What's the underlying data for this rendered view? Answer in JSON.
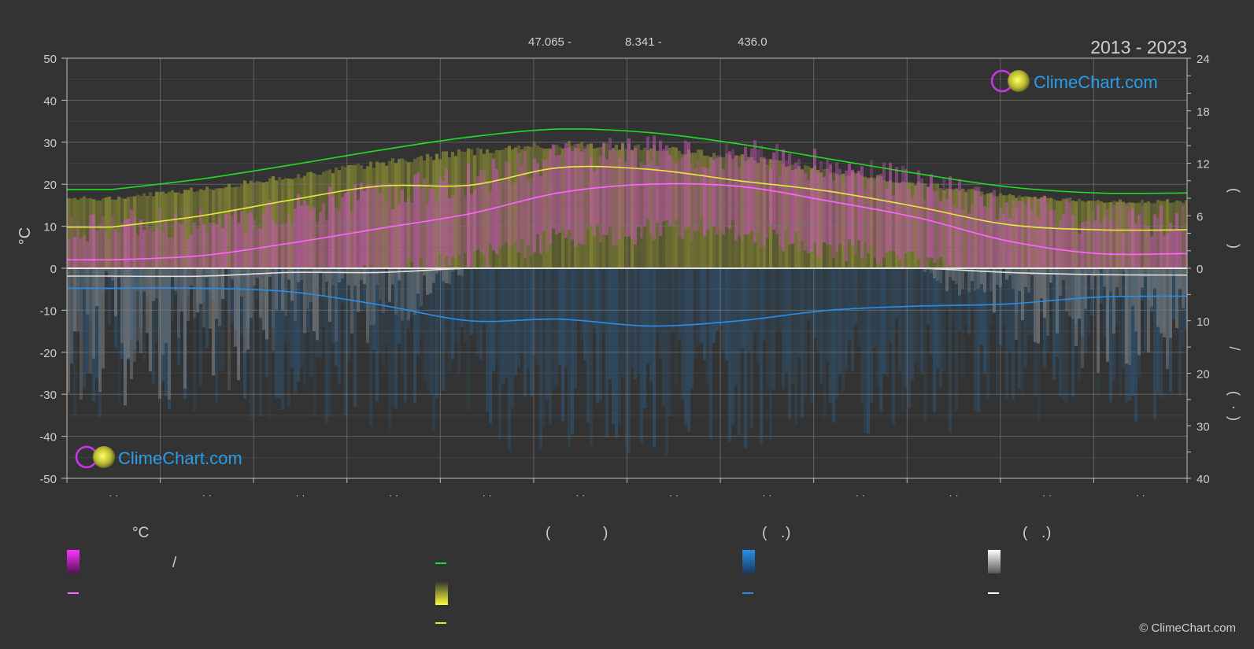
{
  "header": {
    "period": "2013 - 2023",
    "lat": "47.065 -",
    "lon": "8.341 -",
    "elevation": "436.0"
  },
  "chart_data": {
    "type": "area",
    "y_left": {
      "label": "°C",
      "ticks": [
        "50",
        "40",
        "30",
        "20",
        "10",
        "0",
        "-10",
        "-20",
        "-30",
        "-40",
        "-50"
      ],
      "range": [
        -50,
        50
      ]
    },
    "y_right_top": {
      "ticks": [
        "24",
        "18",
        "12",
        "6",
        "0"
      ],
      "range": [
        0,
        24
      ],
      "label_glyphs": [
        "(",
        ")",
        "(",
        ")"
      ]
    },
    "y_right_bottom": {
      "ticks": [
        "0",
        "10",
        "20",
        "30",
        "40"
      ],
      "range": [
        0,
        40
      ],
      "label_glyphs": [
        "/",
        "(",
        "·",
        ")"
      ]
    },
    "x_tick_labels": [
      "· ·",
      "· ·",
      "· ·",
      "· ·",
      "· ·",
      "· ·",
      "· ·",
      "· ·",
      "· ·",
      "· ·",
      "· ·",
      "· ·"
    ],
    "grid": true,
    "series": [
      {
        "key": "daylight",
        "color": "#22dd22",
        "axis": "hours",
        "values": [
          9.0,
          10.2,
          11.8,
          13.5,
          15.0,
          15.9,
          15.5,
          14.2,
          12.5,
          10.8,
          9.3,
          8.6,
          8.6
        ]
      },
      {
        "key": "sunshine",
        "color": "#e8e842",
        "axis": "hours",
        "values": [
          4.7,
          6.0,
          7.8,
          9.4,
          9.5,
          11.5,
          11.3,
          10.0,
          8.8,
          7.0,
          5.0,
          4.4,
          4.4
        ]
      },
      {
        "key": "temp_max_mean",
        "color": "#ff66ff",
        "axis": "celsius",
        "values": [
          2.0,
          3.0,
          6.0,
          9.5,
          13.0,
          18.0,
          20.0,
          19.5,
          16.0,
          12.0,
          6.5,
          3.5,
          3.5
        ]
      },
      {
        "key": "rain",
        "color": "#2a8ee8",
        "axis": "mm",
        "values": [
          3.8,
          3.8,
          4.5,
          7.0,
          10.0,
          9.7,
          11.0,
          10.0,
          8.0,
          7.2,
          6.8,
          5.5,
          5.3
        ]
      },
      {
        "key": "snow",
        "color": "#e0e0e0",
        "axis": "mm",
        "values": [
          1.5,
          1.5,
          0.8,
          0.8,
          0.0,
          0.0,
          0.0,
          0.0,
          0.0,
          0.0,
          0.8,
          1.2,
          1.3
        ]
      }
    ]
  },
  "legend": {
    "col1": {
      "header": "°C",
      "glyph": "/"
    },
    "col2": {
      "header_open": "(",
      "header_close": ")"
    },
    "col3": {
      "header_open": "(",
      "header_dot": ".",
      "header_close": ")"
    },
    "col4": {
      "header_open": "(",
      "header_dot": ".",
      "header_close": ")"
    }
  },
  "branding": {
    "logo_text": "ClimeChart.com",
    "copyright": "© ClimeChart.com"
  },
  "colors": {
    "background": "#333333",
    "daylight": "#22dd22",
    "sunshine": "#e8e842",
    "temperature": "#ff66ff",
    "rain": "#2a8ee8",
    "snow": "#e0e0e0",
    "logo": "#2a9de8"
  }
}
